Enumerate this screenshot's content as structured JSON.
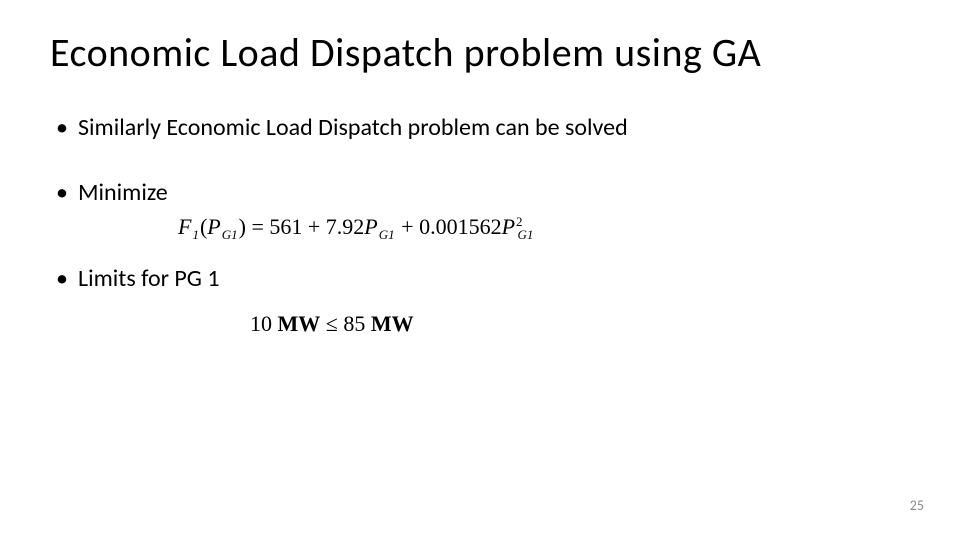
{
  "title": "Economic Load Dispatch problem using GA",
  "bullets": {
    "b1": "Similarly Economic Load Dispatch problem can be solved",
    "b2": "Minimize",
    "b3": "Limits for PG 1"
  },
  "equation": {
    "func_sym": "F",
    "func_sub": "1",
    "arg_sym": "P",
    "arg_sub": "G1",
    "eq": " = ",
    "c0": "561",
    "plus1": " + ",
    "c1": "7.92",
    "plus2": " + ",
    "c2": "0.001562",
    "sq": "2",
    "text_color": "#000000",
    "fontsize": 22
  },
  "constraint": {
    "lower": "10",
    "unit1": "MW",
    "op": " ≤ ",
    "upper": "85",
    "unit2": "MW",
    "fontsize": 22
  },
  "page_number": "25",
  "styling": {
    "background": "#ffffff",
    "title_fontsize": 40,
    "title_color": "#000000",
    "bullet_fontsize": 24,
    "bullet_color": "#000000",
    "pagenum_fontsize": 14,
    "pagenum_color": "#8a8a8a",
    "font_family_body": "Calibri",
    "font_family_math": "Times New Roman"
  }
}
